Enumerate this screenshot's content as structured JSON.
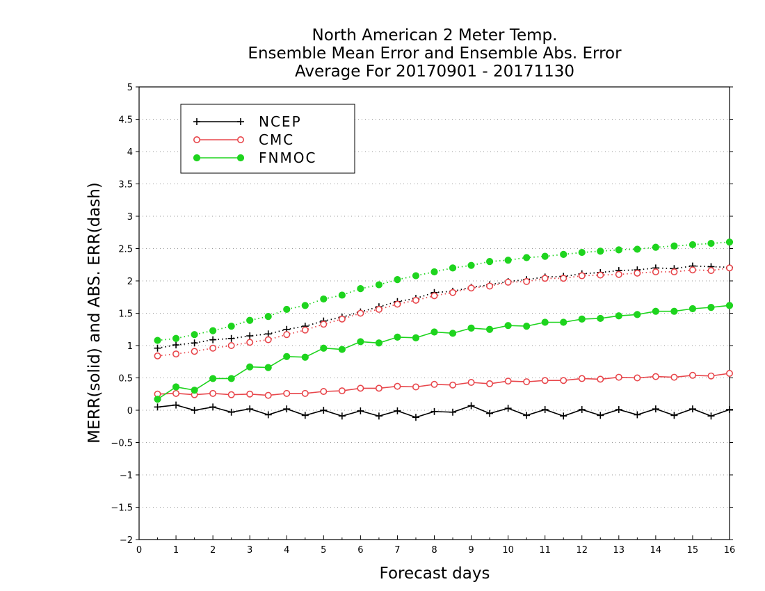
{
  "chart_data": {
    "type": "line",
    "title": [
      "North American 2 Meter Temp.",
      "Ensemble Mean Error and Ensemble Abs. Error",
      "Average For 20170901 - 20171130"
    ],
    "xlabel": "Forecast days",
    "ylabel": "MERR(solid) and ABS. ERR(dash)",
    "xlim": [
      0,
      16
    ],
    "ylim": [
      -2,
      5
    ],
    "xticks": [
      "0",
      "1",
      "2",
      "3",
      "4",
      "5",
      "6",
      "7",
      "8",
      "9",
      "10",
      "11",
      "12",
      "13",
      "14",
      "15",
      "16"
    ],
    "yticks": [
      "−2",
      "−1.5",
      "−1",
      "−0.5",
      "0",
      "0.5",
      "1",
      "1.5",
      "2",
      "2.5",
      "3",
      "3.5",
      "4",
      "4.5",
      "5"
    ],
    "ytick_values": [
      -2,
      -1.5,
      -1,
      -0.5,
      0,
      0.5,
      1,
      1.5,
      2,
      2.5,
      3,
      3.5,
      4,
      4.5,
      5
    ],
    "grid": "horizontal-dotted",
    "legend_position": "top-left",
    "x": [
      0.5,
      1,
      1.5,
      2,
      2.5,
      3,
      3.5,
      4,
      4.5,
      5,
      5.5,
      6,
      6.5,
      7,
      7.5,
      8,
      8.5,
      9,
      9.5,
      10,
      10.5,
      11,
      11.5,
      12,
      12.5,
      13,
      13.5,
      14,
      14.5,
      15,
      15.5,
      16
    ],
    "series": [
      {
        "name": "NCEP",
        "color": "#000000",
        "marker": "plus",
        "merr": [
          0.05,
          0.08,
          0.0,
          0.05,
          -0.03,
          0.02,
          -0.07,
          0.02,
          -0.08,
          0.0,
          -0.09,
          -0.01,
          -0.09,
          -0.01,
          -0.11,
          -0.02,
          -0.03,
          0.07,
          -0.05,
          0.03,
          -0.08,
          0.01,
          -0.09,
          0.01,
          -0.08,
          0.01,
          -0.07,
          0.02,
          -0.08,
          0.02,
          -0.09,
          0.01
        ],
        "abs_err": [
          0.96,
          1.01,
          1.04,
          1.09,
          1.11,
          1.15,
          1.18,
          1.25,
          1.3,
          1.38,
          1.44,
          1.52,
          1.6,
          1.68,
          1.73,
          1.82,
          1.84,
          1.9,
          1.94,
          1.99,
          2.02,
          2.06,
          2.07,
          2.11,
          2.13,
          2.16,
          2.17,
          2.2,
          2.19,
          2.23,
          2.22,
          2.21
        ]
      },
      {
        "name": "CMC",
        "color": "#e8474c",
        "marker": "open-circle",
        "merr": [
          0.25,
          0.26,
          0.24,
          0.26,
          0.24,
          0.25,
          0.23,
          0.26,
          0.26,
          0.29,
          0.3,
          0.34,
          0.34,
          0.37,
          0.36,
          0.4,
          0.39,
          0.43,
          0.41,
          0.45,
          0.44,
          0.46,
          0.46,
          0.49,
          0.48,
          0.51,
          0.5,
          0.52,
          0.51,
          0.54,
          0.53,
          0.57
        ],
        "abs_err": [
          0.84,
          0.87,
          0.91,
          0.96,
          1.0,
          1.05,
          1.09,
          1.17,
          1.24,
          1.33,
          1.41,
          1.5,
          1.56,
          1.64,
          1.7,
          1.77,
          1.82,
          1.89,
          1.92,
          1.98,
          1.99,
          2.04,
          2.04,
          2.08,
          2.09,
          2.1,
          2.12,
          2.14,
          2.14,
          2.17,
          2.16,
          2.2
        ]
      },
      {
        "name": "FNMOC",
        "color": "#1ed41e",
        "marker": "filled-circle",
        "merr": [
          0.17,
          0.36,
          0.31,
          0.49,
          0.49,
          0.67,
          0.66,
          0.83,
          0.82,
          0.96,
          0.94,
          1.06,
          1.04,
          1.13,
          1.12,
          1.21,
          1.19,
          1.27,
          1.25,
          1.31,
          1.3,
          1.36,
          1.36,
          1.41,
          1.42,
          1.46,
          1.48,
          1.53,
          1.53,
          1.57,
          1.59,
          1.62
        ],
        "abs_err": [
          1.08,
          1.11,
          1.17,
          1.23,
          1.3,
          1.39,
          1.45,
          1.56,
          1.62,
          1.72,
          1.78,
          1.88,
          1.94,
          2.02,
          2.08,
          2.14,
          2.2,
          2.24,
          2.3,
          2.32,
          2.36,
          2.38,
          2.41,
          2.44,
          2.46,
          2.48,
          2.49,
          2.52,
          2.54,
          2.56,
          2.58,
          2.6
        ]
      }
    ]
  }
}
